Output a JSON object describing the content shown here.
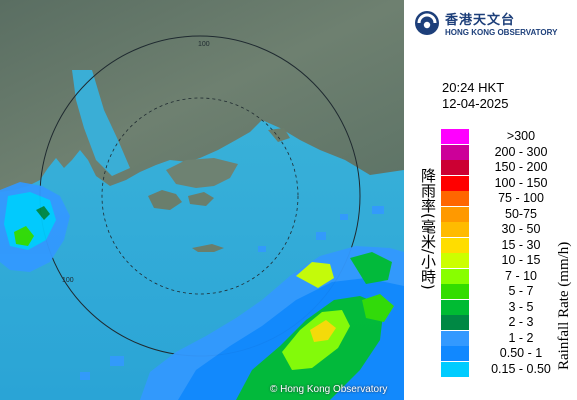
{
  "header": {
    "logo_zh": "香港天文台",
    "logo_en": "HONG KONG OBSERVATORY"
  },
  "timestamp": {
    "time": "20:24 HKT",
    "date": "12-04-2025"
  },
  "map": {
    "copyright": "© Hong Kong Observatory",
    "range_ring_labels": [
      "100",
      "100"
    ]
  },
  "legend": {
    "axis_label_zh": "降雨率(毫米/小時)",
    "axis_label_en": "Rainfall Rate (mm/h)",
    "items": [
      {
        "label": ">300",
        "color": "#ff00ff"
      },
      {
        "label": "200 - 300",
        "color": "#cc0099"
      },
      {
        "label": "150 - 200",
        "color": "#cc0033"
      },
      {
        "label": "100 - 150",
        "color": "#ff0000"
      },
      {
        "label": "75 - 100",
        "color": "#ff6600"
      },
      {
        "label": "50-75",
        "color": "#ff9900"
      },
      {
        "label": "30 - 50",
        "color": "#ffbb00"
      },
      {
        "label": "15 - 30",
        "color": "#ffdd00"
      },
      {
        "label": "10 - 15",
        "color": "#ccff00"
      },
      {
        "label": "7 - 10",
        "color": "#88ff00"
      },
      {
        "label": "5 - 7",
        "color": "#33dd00"
      },
      {
        "label": "3 - 5",
        "color": "#00bb33"
      },
      {
        "label": "2 - 3",
        "color": "#008844"
      },
      {
        "label": "1 - 2",
        "color": "#3399ff"
      },
      {
        "label": "0.50 - 1",
        "color": "#1188ff"
      },
      {
        "label": "0.15 - 0.50",
        "color": "#00ccff"
      }
    ]
  }
}
